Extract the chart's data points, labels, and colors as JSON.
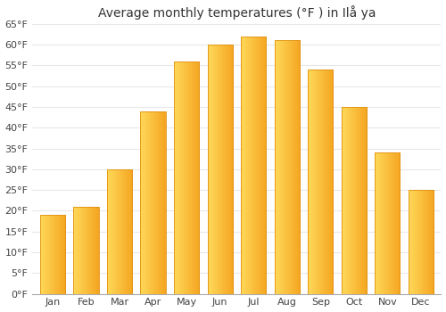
{
  "title": "Average monthly temperatures (°F ) in Ilå ya",
  "months": [
    "Jan",
    "Feb",
    "Mar",
    "Apr",
    "May",
    "Jun",
    "Jul",
    "Aug",
    "Sep",
    "Oct",
    "Nov",
    "Dec"
  ],
  "values": [
    19,
    21,
    30,
    44,
    56,
    60,
    62,
    61,
    54,
    45,
    34,
    25
  ],
  "ylim": [
    0,
    65
  ],
  "yticks": [
    0,
    5,
    10,
    15,
    20,
    25,
    30,
    35,
    40,
    45,
    50,
    55,
    60,
    65
  ],
  "ytick_labels": [
    "0°F",
    "5°F",
    "10°F",
    "15°F",
    "20°F",
    "25°F",
    "30°F",
    "35°F",
    "40°F",
    "45°F",
    "50°F",
    "55°F",
    "60°F",
    "65°F"
  ],
  "background_color": "#ffffff",
  "grid_color": "#e8e8e8",
  "bar_color_left": "#FFD966",
  "bar_color_right": "#F5A623",
  "bar_edge_color": "#E09010",
  "bar_width": 0.75,
  "title_fontsize": 10,
  "tick_fontsize": 8,
  "gradient_steps": 50
}
